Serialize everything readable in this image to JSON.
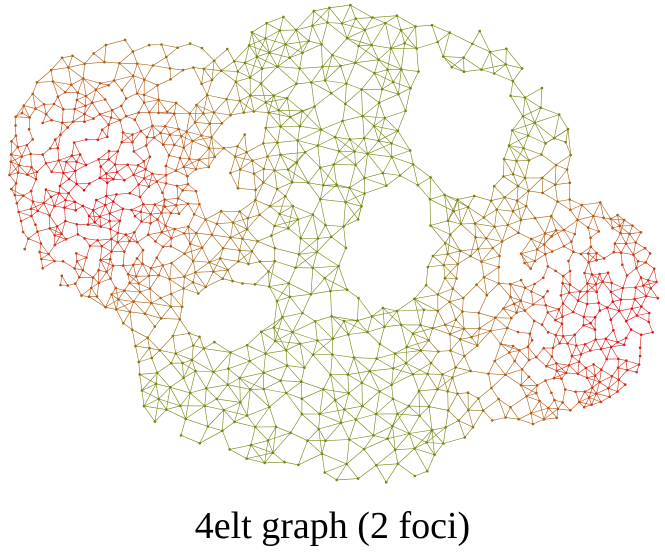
{
  "caption": "4elt graph (2 foci)",
  "graph": {
    "name": "4elt",
    "foci_count": 2,
    "colors": {
      "near_focus": "#e8001c",
      "mid": "#b85a12",
      "far_from_foci": "#6f8a10",
      "background": "#ffffff"
    }
  }
}
